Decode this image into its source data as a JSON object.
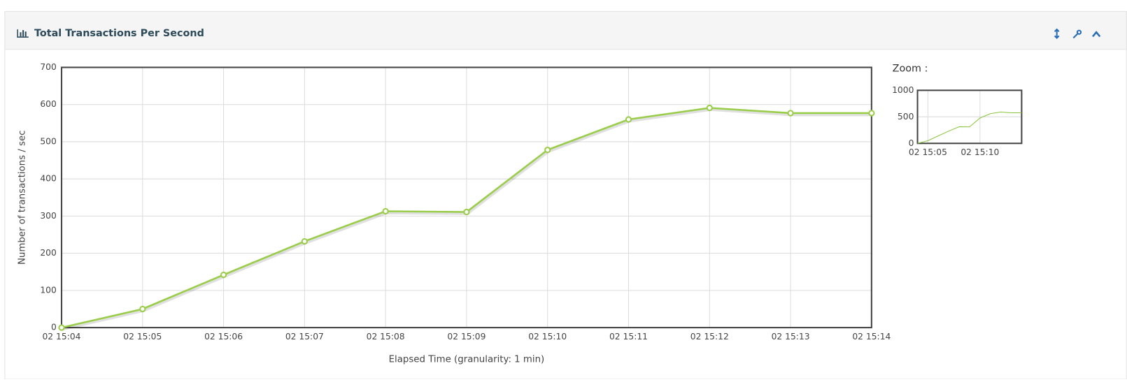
{
  "panel_title": "Total Transactions Per Second",
  "chart_data": [
    {
      "type": "line",
      "y_label": "Number of transactions / sec",
      "x_label": "Elapsed Time (granularity: 1 min)",
      "categories": [
        "02 15:04",
        "02 15:05",
        "02 15:06",
        "02 15:07",
        "02 15:08",
        "02 15:09",
        "02 15:10",
        "02 15:11",
        "02 15:12",
        "02 15:13",
        "02 15:14"
      ],
      "values": [
        0,
        50,
        142,
        232,
        313,
        311,
        478,
        560,
        591,
        577,
        577
      ],
      "color": "#9acd4a",
      "ylim": [
        0,
        700
      ],
      "yticks": [
        0,
        100,
        200,
        300,
        400,
        500,
        600,
        700
      ],
      "grid": true,
      "markers": true
    },
    {
      "type": "line",
      "title": "Zoom :",
      "categories": [
        null,
        "02 15:05",
        null,
        null,
        null,
        null,
        "02 15:10",
        null,
        null,
        null,
        null
      ],
      "values": [
        0,
        50,
        142,
        232,
        313,
        311,
        478,
        560,
        591,
        577,
        577
      ],
      "color": "#8cc63f",
      "ylim": [
        0,
        1000
      ],
      "yticks": [
        0,
        500,
        1000
      ],
      "grid": true,
      "markers": false
    }
  ]
}
